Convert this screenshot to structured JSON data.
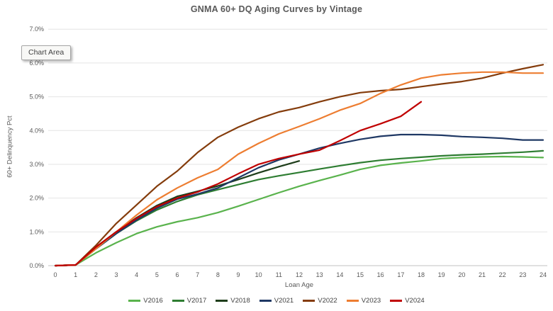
{
  "tooltip": {
    "label": "Chart Area"
  },
  "chart_data": {
    "type": "line",
    "title": "GNMA 60+ DQ Aging Curves by Vintage",
    "xlabel": "Loan Age",
    "ylabel": "60+ Delinquency Pct",
    "x": [
      0,
      1,
      2,
      3,
      4,
      5,
      6,
      7,
      8,
      9,
      10,
      11,
      12,
      13,
      14,
      15,
      16,
      17,
      18,
      19,
      20,
      21,
      22,
      23,
      24
    ],
    "yticks": [
      "0.0%",
      "1.0%",
      "2.0%",
      "3.0%",
      "4.0%",
      "5.0%",
      "6.0%",
      "7.0%"
    ],
    "hidden_ytick": "6.0%",
    "ylim": [
      0.0,
      7.0
    ],
    "grid": true,
    "legend_position": "bottom",
    "colors": {
      "grid": "#e4e4e4",
      "axis": "#c1c1c1",
      "text": "#595959"
    },
    "series": [
      {
        "name": "V2016",
        "color": "#5AB34D",
        "values": [
          0,
          0.02,
          0.38,
          0.68,
          0.95,
          1.15,
          1.3,
          1.42,
          1.57,
          1.76,
          1.96,
          2.16,
          2.35,
          2.52,
          2.68,
          2.85,
          2.97,
          3.04,
          3.1,
          3.17,
          3.2,
          3.22,
          3.23,
          3.22,
          3.2
        ]
      },
      {
        "name": "V2017",
        "color": "#2E7D32",
        "values": [
          0,
          0.02,
          0.5,
          0.95,
          1.33,
          1.65,
          1.9,
          2.1,
          2.25,
          2.4,
          2.55,
          2.66,
          2.76,
          2.86,
          2.96,
          3.05,
          3.12,
          3.17,
          3.21,
          3.25,
          3.28,
          3.3,
          3.33,
          3.36,
          3.4
        ]
      },
      {
        "name": "V2018",
        "color": "#1E3D1A",
        "values": [
          0,
          0.02,
          0.55,
          1.0,
          1.42,
          1.78,
          2.05,
          2.2,
          2.36,
          2.55,
          2.75,
          2.93,
          3.1,
          null,
          null,
          null,
          null,
          null,
          null,
          null,
          null,
          null,
          null,
          null,
          null
        ]
      },
      {
        "name": "V2021",
        "color": "#1F3864",
        "values": [
          0,
          0.02,
          0.5,
          0.95,
          1.35,
          1.7,
          1.97,
          2.12,
          2.3,
          2.6,
          2.9,
          3.13,
          3.3,
          3.48,
          3.62,
          3.74,
          3.83,
          3.88,
          3.88,
          3.86,
          3.82,
          3.8,
          3.77,
          3.72,
          3.72
        ]
      },
      {
        "name": "V2022",
        "color": "#843C0C",
        "values": [
          0,
          0.02,
          0.6,
          1.25,
          1.8,
          2.35,
          2.8,
          3.35,
          3.8,
          4.1,
          4.35,
          4.55,
          4.68,
          4.85,
          5.0,
          5.12,
          5.18,
          5.22,
          5.3,
          5.38,
          5.45,
          5.55,
          5.7,
          5.83,
          5.95
        ]
      },
      {
        "name": "V2023",
        "color": "#ED7D31",
        "values": [
          0,
          0.02,
          0.5,
          1.0,
          1.5,
          1.95,
          2.3,
          2.6,
          2.85,
          3.3,
          3.62,
          3.9,
          4.12,
          4.35,
          4.6,
          4.8,
          5.1,
          5.35,
          5.55,
          5.65,
          5.7,
          5.73,
          5.73,
          5.7,
          5.7
        ]
      },
      {
        "name": "V2024",
        "color": "#C00000",
        "values": [
          0,
          0.02,
          0.55,
          1.0,
          1.4,
          1.75,
          2.0,
          2.18,
          2.42,
          2.72,
          3.0,
          3.17,
          3.3,
          3.42,
          3.7,
          4.0,
          4.2,
          4.42,
          4.85,
          null,
          null,
          null,
          null,
          null,
          null
        ]
      }
    ]
  }
}
